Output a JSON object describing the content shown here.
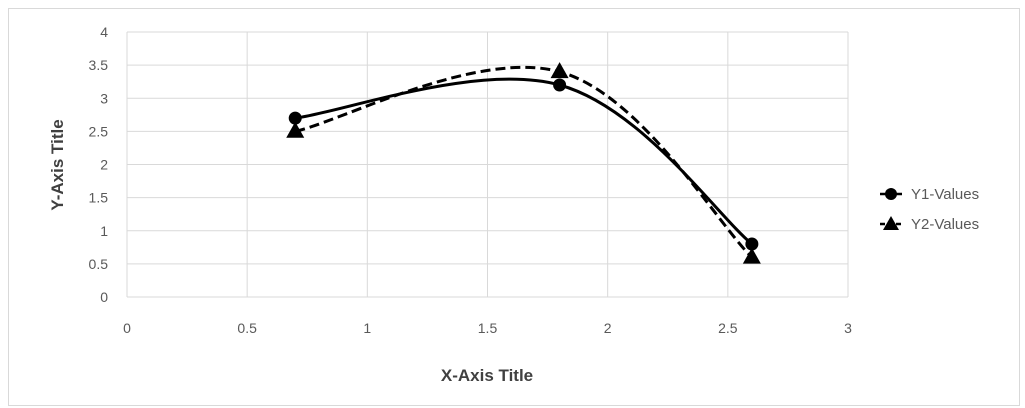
{
  "chart_data": {
    "type": "scatter",
    "title": "",
    "xlabel": "X-Axis Title",
    "ylabel": "Y-Axis Title",
    "xlim": [
      0,
      3
    ],
    "ylim": [
      0,
      4
    ],
    "x_ticks": [
      0,
      0.5,
      1,
      1.5,
      2,
      2.5,
      3
    ],
    "y_ticks": [
      0,
      0.5,
      1,
      1.5,
      2,
      2.5,
      3,
      3.5,
      4
    ],
    "x_tick_labels": [
      "0",
      "0.5",
      "1",
      "1.5",
      "2",
      "2.5",
      "3"
    ],
    "y_tick_labels": [
      "0",
      "0.5",
      "1",
      "1.5",
      "2",
      "2.5",
      "3",
      "3.5",
      "4"
    ],
    "grid": true,
    "legend_position": "right",
    "smoothed_lines": true,
    "series": [
      {
        "name": "Y1-Values",
        "marker": "circle",
        "line_style": "solid",
        "color": "#000000",
        "points": [
          {
            "x": 0.7,
            "y": 2.7
          },
          {
            "x": 1.8,
            "y": 3.2
          },
          {
            "x": 2.6,
            "y": 0.8
          }
        ]
      },
      {
        "name": "Y2-Values",
        "marker": "triangle",
        "line_style": "dashed",
        "color": "#000000",
        "points": [
          {
            "x": 0.7,
            "y": 2.5
          },
          {
            "x": 1.8,
            "y": 3.4
          },
          {
            "x": 2.6,
            "y": 0.6
          }
        ]
      }
    ]
  }
}
